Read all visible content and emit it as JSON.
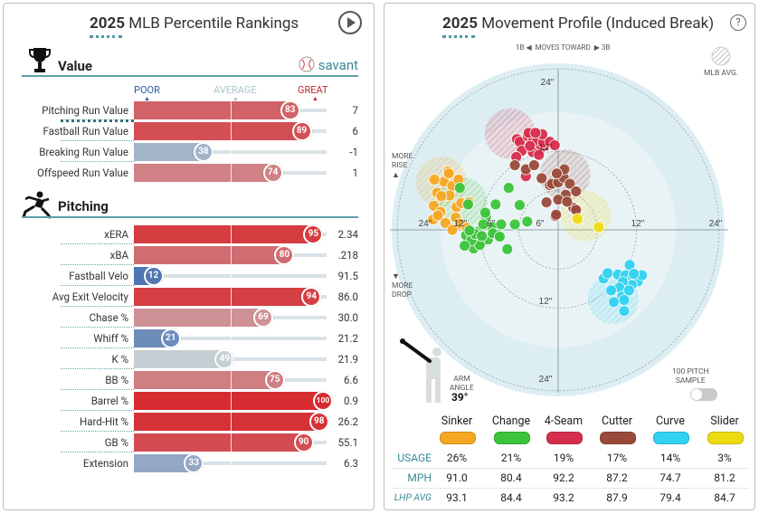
{
  "left": {
    "title_year": "2025",
    "title_rest": "MLB Percentile Rankings",
    "play_icon": "play-icon",
    "value_section": {
      "heading": "Value",
      "icon": "trophy-icon",
      "brand": "savant"
    },
    "scale_labels": {
      "poor": "POOR",
      "average": "AVERAGE",
      "great": "GREAT"
    },
    "value_rows": [
      {
        "label": "Pitching Run Value",
        "percentile": 83,
        "value": "7"
      },
      {
        "label": "Fastball Run Value",
        "percentile": 89,
        "value": "6"
      },
      {
        "label": "Breaking Run Value",
        "percentile": 38,
        "value": "-1"
      },
      {
        "label": "Offspeed Run Value",
        "percentile": 74,
        "value": "1"
      }
    ],
    "pitching_section": {
      "heading": "Pitching",
      "icon": "pitcher-icon"
    },
    "pitching_rows": [
      {
        "label": "xERA",
        "percentile": 95,
        "value": "2.34"
      },
      {
        "label": "xBA",
        "percentile": 80,
        "value": ".218"
      },
      {
        "label": "Fastball Velo",
        "percentile": 12,
        "value": "91.5"
      },
      {
        "label": "Avg Exit Velocity",
        "percentile": 94,
        "value": "86.0"
      },
      {
        "label": "Chase %",
        "percentile": 69,
        "value": "30.0"
      },
      {
        "label": "Whiff %",
        "percentile": 21,
        "value": "21.2"
      },
      {
        "label": "K %",
        "percentile": 49,
        "value": "21.9"
      },
      {
        "label": "BB %",
        "percentile": 75,
        "value": "6.6"
      },
      {
        "label": "Barrel %",
        "percentile": 100,
        "value": "0.9"
      },
      {
        "label": "Hard-Hit %",
        "percentile": 98,
        "value": "26.2"
      },
      {
        "label": "GB %",
        "percentile": 90,
        "value": "55.1"
      },
      {
        "label": "Extension",
        "percentile": 33,
        "value": "6.3"
      }
    ]
  },
  "right": {
    "title_year": "2025",
    "title_rest": "Movement Profile (Induced Break)",
    "help_icon": "question-icon",
    "moves_toward": {
      "left": "1B",
      "text": "MOVES TOWARD",
      "right": "3B"
    },
    "mlb_avg_label": "MLB AVG.",
    "more_rise": [
      "MORE",
      "RISE"
    ],
    "more_drop": [
      "MORE",
      "DROP"
    ],
    "ring_labels": {
      "r6": "6\"",
      "r12": "12\"",
      "r24": "24\""
    },
    "arm_angle": {
      "label": [
        "ARM",
        "ANGLE"
      ],
      "value": "39°"
    },
    "sample_toggle": {
      "label": [
        "100 PITCH",
        "SAMPLE"
      ],
      "on": false
    },
    "table": {
      "row_labels": [
        "USAGE",
        "MPH",
        "LHP AVG"
      ],
      "pitches": [
        {
          "name": "Sinker",
          "color": "#f5a623",
          "usage": "26%",
          "mph": "91.0",
          "lhp_avg": "93.1"
        },
        {
          "name": "Change",
          "color": "#3cc43c",
          "usage": "21%",
          "mph": "80.4",
          "lhp_avg": "84.4"
        },
        {
          "name": "4-Seam",
          "color": "#d62e4d",
          "usage": "19%",
          "mph": "92.2",
          "lhp_avg": "93.2"
        },
        {
          "name": "Cutter",
          "color": "#9a4a3a",
          "usage": "17%",
          "mph": "87.2",
          "lhp_avg": "87.9"
        },
        {
          "name": "Curve",
          "color": "#31d2ef",
          "usage": "14%",
          "mph": "74.7",
          "lhp_avg": "79.4"
        },
        {
          "name": "Slider",
          "color": "#eeda10",
          "usage": "3%",
          "mph": "81.2",
          "lhp_avg": "84.7"
        }
      ]
    }
  },
  "chart_data": {
    "type": "scatter",
    "title": "Movement Profile (Induced Break)",
    "x_range_in": [
      -24,
      24
    ],
    "y_range_in": [
      -24,
      24
    ],
    "series": [
      {
        "name": "Sinker",
        "color": "#f5a623",
        "mlb_avg": [
          -17,
          7
        ],
        "x": [
          -16.6,
          -18.0,
          -16.0,
          -15.4,
          -17.6,
          -15.8,
          -18.1,
          -14.8,
          -17.1,
          -14.1,
          -14.9,
          -16.4,
          -14.3,
          -13.3,
          -15.4,
          -18.2,
          -17.0,
          -14.5,
          -13.0,
          -15.9,
          -17.5
        ],
        "y": [
          7.0,
          7.3,
          8.5,
          6.4,
          5.4,
          5.0,
          3.5,
          3.3,
          2.6,
          3.9,
          1.8,
          1.0,
          0.9,
          0.3,
          0.0,
          1.5,
          4.9,
          7.3,
          4.0,
          8.2,
          2.1
        ]
      },
      {
        "name": "Change",
        "color": "#3cc43c",
        "mlb_avg": [
          -14,
          4
        ],
        "x": [
          -14.3,
          -13.4,
          -12.3,
          -11.7,
          -11.0,
          -10.5,
          -9.6,
          -8.8,
          -10.2,
          -11.4,
          -12.6,
          -13.6,
          -12.1,
          -10.9,
          -9.5,
          -8.3,
          -7.4,
          -6.3,
          -4.5,
          -5.6,
          -7.2,
          -9.1,
          -10.6,
          -12.9,
          -11.1,
          -8.5,
          -13.1
        ],
        "y": [
          6.1,
          -0.8,
          -2.7,
          -0.3,
          -1.7,
          1.9,
          0.4,
          -0.7,
          -1.4,
          -2.2,
          -1.5,
          -2.3,
          -0.6,
          0.8,
          -0.5,
          0.8,
          -2.8,
          0.8,
          1.2,
          3.6,
          6.1,
          3.7,
          2.5,
          -0.1,
          -0.9,
          -1.0,
          3.7
        ]
      },
      {
        "name": "4-Seam",
        "color": "#d62e4d",
        "mlb_avg": [
          -7,
          14
        ],
        "x": [
          -6.0,
          -5.6,
          -4.4,
          -3.7,
          -3.1,
          -2.0,
          -2.7,
          -5.3,
          -3.7,
          -2.8,
          -4.1,
          -2.2,
          -1.2,
          -0.5,
          -2.3,
          -4.3,
          -3.3,
          -6.1,
          -4.7
        ],
        "y": [
          13.2,
          12.8,
          13.6,
          12.9,
          12.8,
          12.2,
          11.6,
          11.5,
          11.3,
          10.9,
          12.2,
          12.7,
          12.8,
          12.3,
          13.9,
          14.1,
          14.1,
          10.6,
          7.8
        ]
      },
      {
        "name": "Cutter",
        "color": "#9a4a3a",
        "mlb_avg": [
          1,
          8
        ],
        "x": [
          -6.3,
          -4.7,
          -3.5,
          -2.4,
          -1.2,
          -0.9,
          0.0,
          0.8,
          1.7,
          1.1,
          0.9,
          2.6,
          2.2,
          0.0,
          -0.2,
          1.3,
          2.6,
          -0.4,
          -1.7,
          -0.3
        ],
        "y": [
          9.4,
          8.8,
          9.4,
          7.5,
          6.5,
          6.7,
          6.9,
          7.6,
          6.7,
          5.1,
          8.8,
          5.6,
          3.2,
          4.4,
          8.2,
          4.1,
          2.9,
          2.0,
          4.0,
          2.2
        ]
      },
      {
        "name": "Curve",
        "color": "#31d2ef",
        "mlb_avg": [
          8,
          -10
        ],
        "x": [
          6.6,
          7.2,
          8.7,
          9.8,
          10.9,
          11.6,
          10.7,
          9.4,
          8.9,
          7.7,
          9.3,
          10.3,
          9.6,
          8.1,
          9.6,
          10.4,
          12.2,
          11.0
        ],
        "y": [
          -7.1,
          -6.3,
          -6.5,
          -6.6,
          -7.0,
          -7.5,
          -8.0,
          -7.6,
          -8.4,
          -8.8,
          -9.7,
          -8.8,
          -10.2,
          -10.5,
          -11.8,
          -5.1,
          -6.6,
          -6.4
        ]
      },
      {
        "name": "Slider",
        "color": "#eeda10",
        "mlb_avg": [
          4,
          2
        ],
        "x": [
          5.9,
          2.8
        ],
        "y": [
          0.4,
          1.6
        ]
      }
    ]
  }
}
